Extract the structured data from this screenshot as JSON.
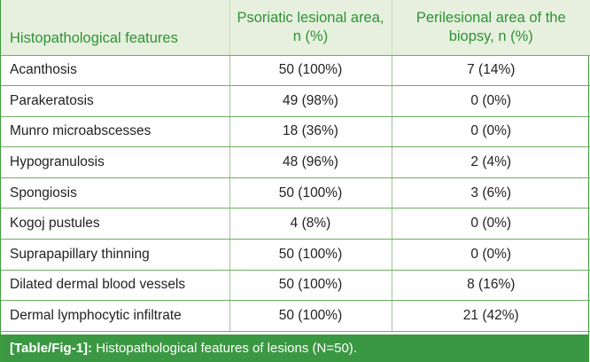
{
  "table": {
    "headers": [
      "Histopathological features",
      "Psoriatic lesional area, n (%)",
      "Perilesional area of the biopsy, n (%)"
    ],
    "rows": [
      [
        "Acanthosis",
        "50 (100%)",
        "7 (14%)"
      ],
      [
        "Parakeratosis",
        "49 (98%)",
        "0 (0%)"
      ],
      [
        "Munro microabscesses",
        "18 (36%)",
        "0 (0%)"
      ],
      [
        "Hypogranulosis",
        "48 (96%)",
        "2 (4%)"
      ],
      [
        "Spongiosis",
        "50 (100%)",
        "3 (6%)"
      ],
      [
        "Kogoj pustules",
        "4 (8%)",
        "0 (0%)"
      ],
      [
        "Suprapapillary thinning",
        "50 (100%)",
        "0 (0%)"
      ],
      [
        "Dilated dermal blood vessels",
        "50 (100%)",
        "8 (16%)"
      ],
      [
        "Dermal lymphocytic infiltrate",
        "50 (100%)",
        "21 (42%)"
      ]
    ]
  },
  "caption": {
    "label": "[Table/Fig-1]:",
    "text": "Histopathological features of lesions (N=50)."
  },
  "colors": {
    "header_text": "#2f9235",
    "header_bg": "#e7f0df",
    "caption_bg": "#3b9842",
    "grid_lines": "#6fae62"
  }
}
